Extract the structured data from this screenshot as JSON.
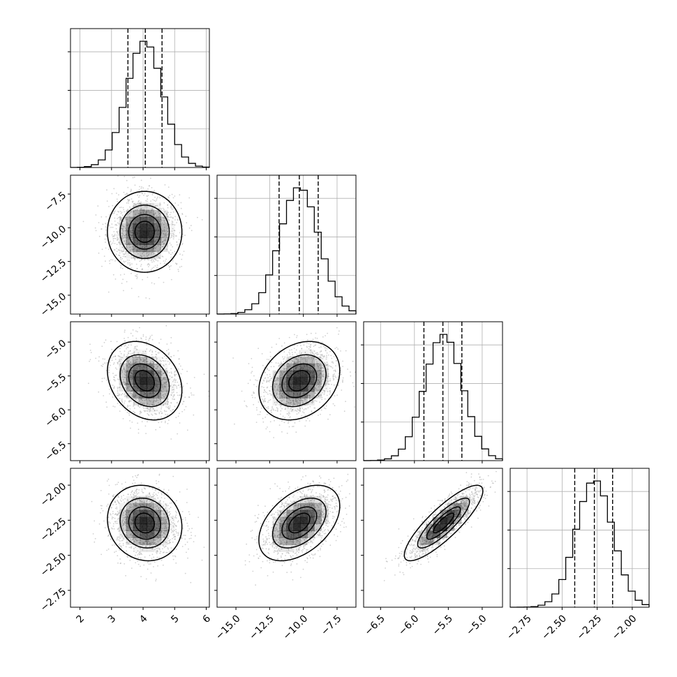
{
  "chart_data": {
    "type": "corner",
    "title": "",
    "parameters": [
      {
        "ticks": [
          "2",
          "3",
          "4",
          "5",
          "6"
        ],
        "range": [
          1.7,
          6.1
        ],
        "mean": 4.05,
        "sd": 0.57,
        "quantiles": [
          3.52,
          4.07,
          4.6
        ]
      },
      {
        "ticks": [
          "−15.0",
          "−12.5",
          "−10.0",
          "−7.5"
        ],
        "range": [
          -16.4,
          -6.1
        ],
        "mean": -10.3,
        "sd": 1.45,
        "quantiles": [
          -11.8,
          -10.3,
          -8.9
        ]
      },
      {
        "ticks": [
          "−6.5",
          "−6.0",
          "−5.5",
          "−5.0"
        ],
        "range": [
          -6.75,
          -4.7
        ],
        "mean": -5.57,
        "sd": 0.28,
        "quantiles": [
          -5.86,
          -5.58,
          -5.3
        ]
      },
      {
        "ticks": [
          "−2.75",
          "−2.50",
          "−2.25",
          "−2.00"
        ],
        "range": [
          -2.87,
          -1.88
        ],
        "mean": -2.27,
        "sd": 0.13,
        "quantiles": [
          -2.41,
          -2.27,
          -2.14
        ]
      }
    ],
    "correlations": [
      [
        1,
        0,
        -0.25,
        -0.1
      ],
      [
        0,
        1,
        0.25,
        0.45
      ],
      [
        -0.25,
        0.25,
        1,
        0.85
      ],
      [
        -0.1,
        0.45,
        0.85,
        1
      ]
    ],
    "contour_levels_sigma": [
      0.5,
      1,
      1.5,
      2
    ],
    "histogram_bins": 20,
    "grid": true,
    "colors": {
      "line": "#000000",
      "grid": "#b0b0b0",
      "points": "#aaaaaa"
    }
  }
}
